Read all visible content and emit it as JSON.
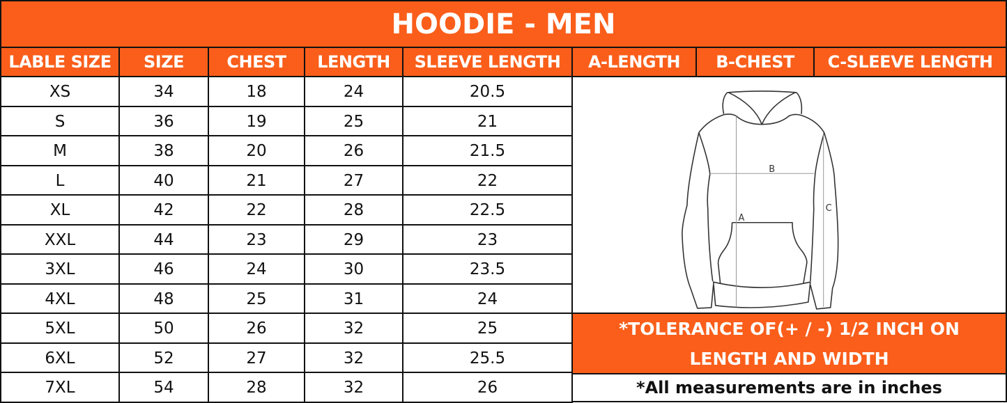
{
  "title": "HOODIE - MEN",
  "columns": [
    "LABLE SIZE",
    "SIZE",
    "CHEST",
    "LENGTH",
    "SLEEVE LENGTH"
  ],
  "diagram_columns": [
    "A-LENGTH",
    "B-CHEST",
    "C-SLEEVE LENGTH"
  ],
  "rows": [
    [
      "XS",
      "34",
      "18",
      "24",
      "20.5"
    ],
    [
      "S",
      "36",
      "19",
      "25",
      "21"
    ],
    [
      "M",
      "38",
      "20",
      "26",
      "21.5"
    ],
    [
      "L",
      "40",
      "21",
      "27",
      "22"
    ],
    [
      "XL",
      "42",
      "22",
      "28",
      "22.5"
    ],
    [
      "XXL",
      "44",
      "23",
      "29",
      "23"
    ],
    [
      "3XL",
      "46",
      "24",
      "30",
      "23.5"
    ],
    [
      "4XL",
      "48",
      "25",
      "31",
      "24"
    ],
    [
      "5XL",
      "50",
      "26",
      "32",
      "25"
    ],
    [
      "6XL",
      "52",
      "27",
      "32",
      "25.5"
    ],
    [
      "7XL",
      "54",
      "28",
      "32",
      "26"
    ]
  ],
  "diagram_labels": {
    "a": "A",
    "b": "B",
    "c": "C"
  },
  "tolerance": "*TOLERANCE OF(+ / -) 1/2 INCH ON LENGTH AND WIDTH",
  "note": "*All measurements are in inches",
  "colors": {
    "accent": "#fa5e1a",
    "border": "#111111"
  },
  "icons": {
    "diagram": "hoodie-measurement-diagram"
  }
}
